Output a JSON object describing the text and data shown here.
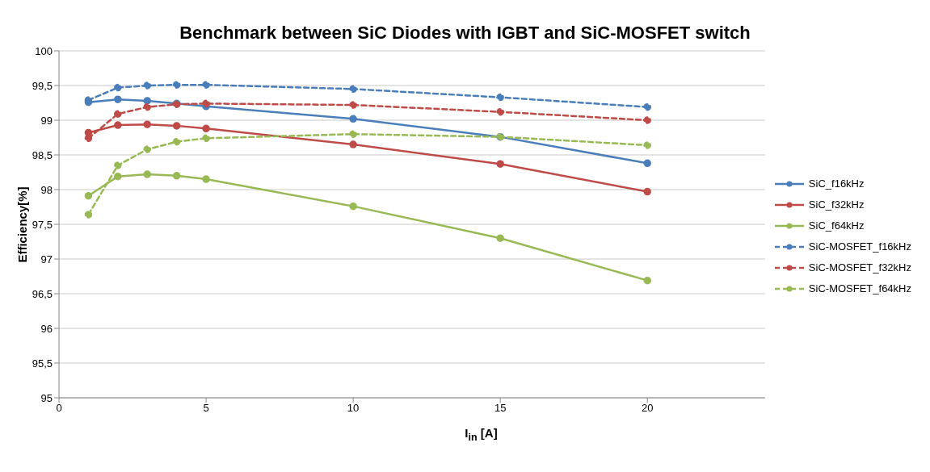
{
  "chart_data": {
    "type": "line",
    "title": "Benchmark between SiC Diodes with IGBT and SiC-MOSFET switch",
    "xlabel": "I$_{in}$ [A]",
    "ylabel": "Efficiency[%]",
    "x": [
      1,
      2,
      3,
      4,
      5,
      10,
      15,
      20
    ],
    "xlim": [
      0,
      24
    ],
    "xticks": [
      0,
      5,
      10,
      15,
      20
    ],
    "ylim": [
      95,
      100
    ],
    "yticks": [
      95,
      {
        "value": 95.5,
        "label": "95,5"
      },
      96,
      {
        "value": 96.5,
        "label": "96,5"
      },
      97,
      {
        "value": 97.5,
        "label": "97,5"
      },
      98,
      {
        "value": 98.5,
        "label": "98,5"
      },
      99,
      {
        "value": 99.5,
        "label": "99,5"
      },
      100
    ],
    "grid": "y",
    "legend": "right",
    "marker": "circle",
    "series": [
      {
        "name": "SiC_f16kHz",
        "color": "#4a7ebb",
        "line_style": "solid",
        "values": [
          99.26,
          99.3,
          99.28,
          99.24,
          99.2,
          99.02,
          98.76,
          98.38
        ]
      },
      {
        "name": "SiC_f32kHz",
        "color": "#be4b48",
        "line_style": "solid",
        "values": [
          98.82,
          98.93,
          98.94,
          98.92,
          98.88,
          98.65,
          98.37,
          97.97
        ]
      },
      {
        "name": "SiC_f64kHz",
        "color": "#98b954",
        "line_style": "solid",
        "values": [
          97.91,
          98.19,
          98.22,
          98.2,
          98.15,
          97.76,
          97.3,
          96.69
        ]
      },
      {
        "name": "SiC-MOSFET_f16kHz",
        "color": "#4a7ebb",
        "line_style": "dashed",
        "values": [
          99.29,
          99.47,
          99.5,
          99.51,
          99.51,
          99.45,
          99.33,
          99.19
        ]
      },
      {
        "name": "SiC-MOSFET_f32kHz",
        "color": "#be4b48",
        "line_style": "dashed",
        "values": [
          98.74,
          99.09,
          99.19,
          99.23,
          99.24,
          99.22,
          99.12,
          99.0
        ]
      },
      {
        "name": "SiC-MOSFET_f64kHz",
        "color": "#98b954",
        "line_style": "dashed",
        "values": [
          97.64,
          98.35,
          98.58,
          98.69,
          98.74,
          98.8,
          98.76,
          98.64
        ]
      }
    ]
  }
}
